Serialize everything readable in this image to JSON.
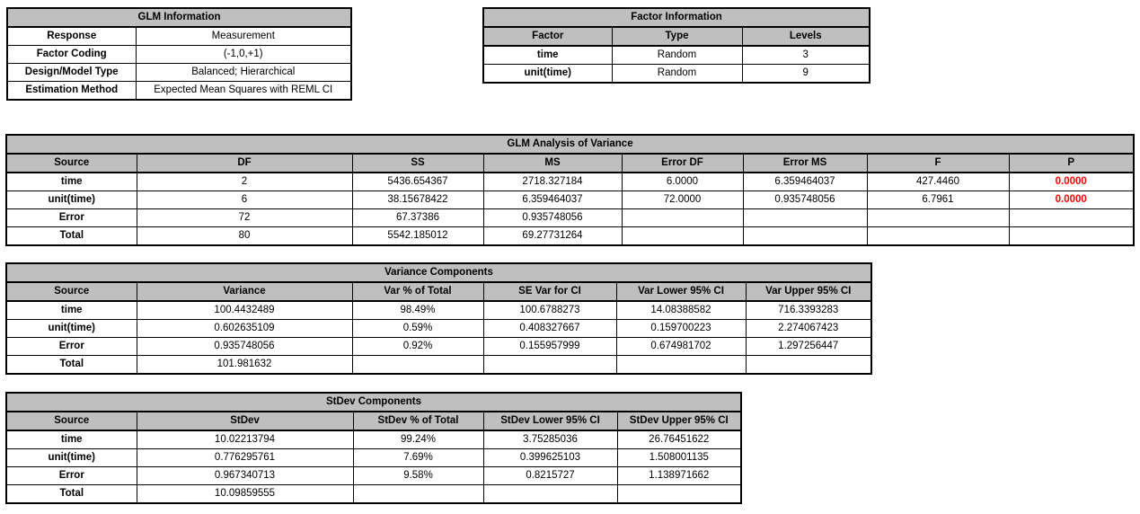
{
  "colors": {
    "header_bg": "#BFBFBF",
    "border": "#000000",
    "text": "#000000",
    "cell_bg": "#FFFFFF",
    "p_value": "#FF0000"
  },
  "tables": {
    "glm_information": {
      "title": "GLM Information",
      "headers": null,
      "rows": [
        [
          "Response",
          "Measurement"
        ],
        [
          "Factor Coding",
          "(-1,0,+1)"
        ],
        [
          "Design/Model Type",
          "Balanced; Hierarchical"
        ],
        [
          "Estimation Method",
          "Expected Mean Squares with REML CI"
        ]
      ]
    },
    "factor_information": {
      "title": "Factor Information",
      "headers": [
        "Factor",
        "Type",
        "Levels"
      ],
      "rows": [
        [
          "time",
          "Random",
          "3"
        ],
        [
          "unit(time)",
          "Random",
          "9"
        ]
      ]
    },
    "glm_anova": {
      "title": "GLM Analysis of Variance",
      "headers": [
        "Source",
        "DF",
        "SS",
        "MS",
        "Error DF",
        "Error MS",
        "F",
        "P"
      ],
      "rows": [
        [
          "time",
          "2",
          "5436.654367",
          "2718.327184",
          "6.0000",
          "6.359464037",
          "427.4460",
          {
            "text": "0.0000",
            "red": true
          }
        ],
        [
          "unit(time)",
          "6",
          "38.15678422",
          "6.359464037",
          "72.0000",
          "0.935748056",
          "6.7961",
          {
            "text": "0.0000",
            "red": true
          }
        ],
        [
          "Error",
          "72",
          "67.37386",
          "0.935748056",
          "",
          "",
          "",
          ""
        ],
        [
          "Total",
          "80",
          "5542.185012",
          "69.27731264",
          "",
          "",
          "",
          ""
        ]
      ]
    },
    "variance_components": {
      "title": "Variance Components",
      "headers": [
        "Source",
        "Variance",
        "Var % of Total",
        "SE Var for CI",
        "Var Lower 95% CI",
        "Var Upper 95% CI"
      ],
      "rows": [
        [
          "time",
          "100.4432489",
          "98.49%",
          "100.6788273",
          "14.08388582",
          "716.3393283"
        ],
        [
          "unit(time)",
          "0.602635109",
          "0.59%",
          "0.408327667",
          "0.159700223",
          "2.274067423"
        ],
        [
          "Error",
          "0.935748056",
          "0.92%",
          "0.155957999",
          "0.674981702",
          "1.297256447"
        ],
        [
          "Total",
          "101.981632",
          "",
          "",
          "",
          ""
        ]
      ]
    },
    "stdev_components": {
      "title": "StDev Components",
      "headers": [
        "Source",
        "StDev",
        "StDev % of Total",
        "StDev Lower 95% CI",
        "StDev Upper 95% CI"
      ],
      "rows": [
        [
          "time",
          "10.02213794",
          "99.24%",
          "3.75285036",
          "26.76451622"
        ],
        [
          "unit(time)",
          "0.776295761",
          "7.69%",
          "0.399625103",
          "1.508001135"
        ],
        [
          "Error",
          "0.967340713",
          "9.58%",
          "0.8215727",
          "1.138971662"
        ],
        [
          "Total",
          "10.09859555",
          "",
          "",
          ""
        ]
      ]
    }
  }
}
